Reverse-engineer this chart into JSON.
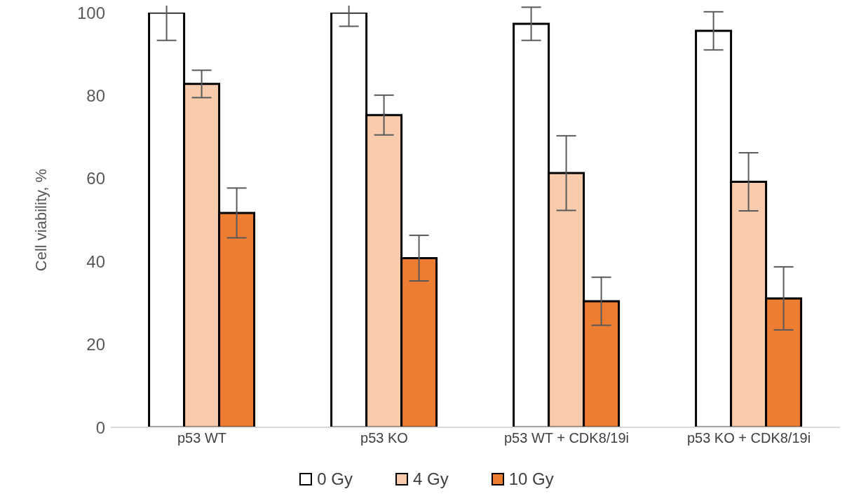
{
  "chart_data": {
    "type": "bar",
    "ylabel": "Cell viability, %",
    "categories": [
      "p53 WT",
      "p53 KO",
      "p53 WT + CDK8/19i",
      "p53 KO + CDK8/19i"
    ],
    "series": [
      {
        "name": "0 Gy",
        "color": "#ffffff",
        "values": [
          100,
          100,
          97.3,
          95.6
        ],
        "errors": [
          6.7,
          3.3,
          4,
          4.6
        ]
      },
      {
        "name": "4 Gy",
        "color": "#f8cbad",
        "values": [
          82.8,
          75.3,
          61.3,
          59.2
        ],
        "errors": [
          3.3,
          4.8,
          9,
          7
        ]
      },
      {
        "name": "10 Gy",
        "color": "#ed7d31",
        "values": [
          51.7,
          40.8,
          30.4,
          31.1
        ],
        "errors": [
          6,
          5.5,
          5.8,
          7.6
        ]
      }
    ],
    "ylim": [
      0,
      100
    ],
    "yticks": [
      0,
      20,
      40,
      60,
      80,
      100
    ],
    "grid": false,
    "legend": "bottom"
  }
}
